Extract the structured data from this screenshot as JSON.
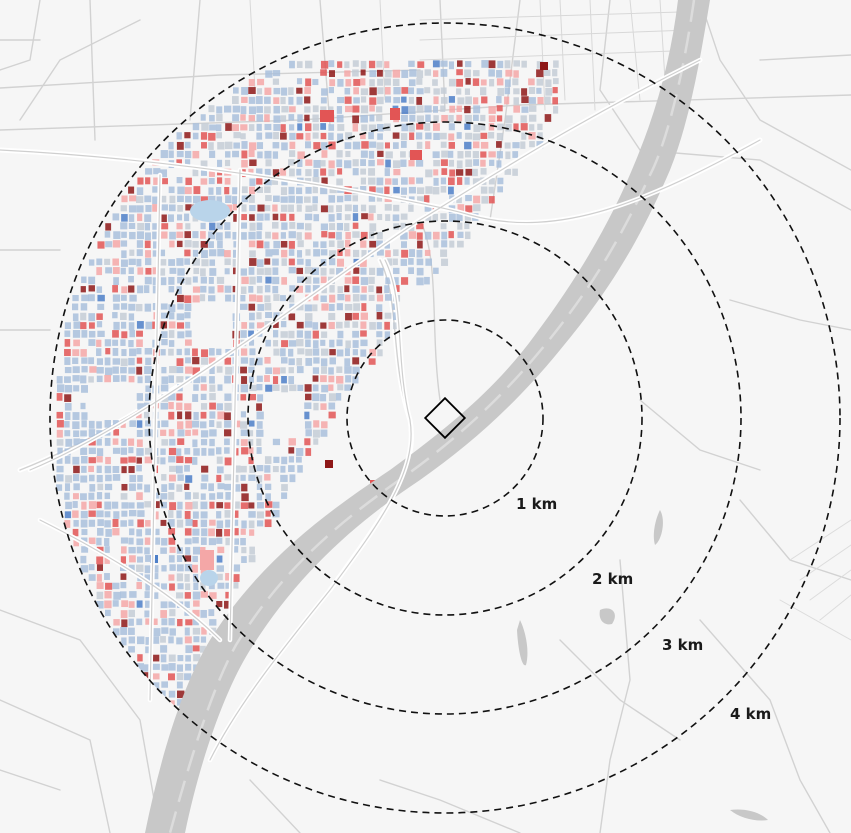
{
  "map": {
    "colors": {
      "land": "#f6f6f6",
      "road": "#d2d2d2",
      "road_casing": "#ffffff",
      "river": "#c8c8c8",
      "river_line": "#dcdcdc",
      "ring": "#111111",
      "block_blue": "#a9bfdc",
      "block_blue_strong": "#4d7fc8",
      "block_gray": "#c4ccd6",
      "block_pink": "#f4a7a7",
      "block_red": "#e25555",
      "block_darkred": "#8e1717",
      "water_patch": "#b9d4ea",
      "site": "#000000"
    },
    "site_icon": "site-square-icon",
    "rings": [
      {
        "label": "1 km"
      },
      {
        "label": "2 km"
      },
      {
        "label": "3 km"
      },
      {
        "label": "4 km"
      }
    ]
  }
}
